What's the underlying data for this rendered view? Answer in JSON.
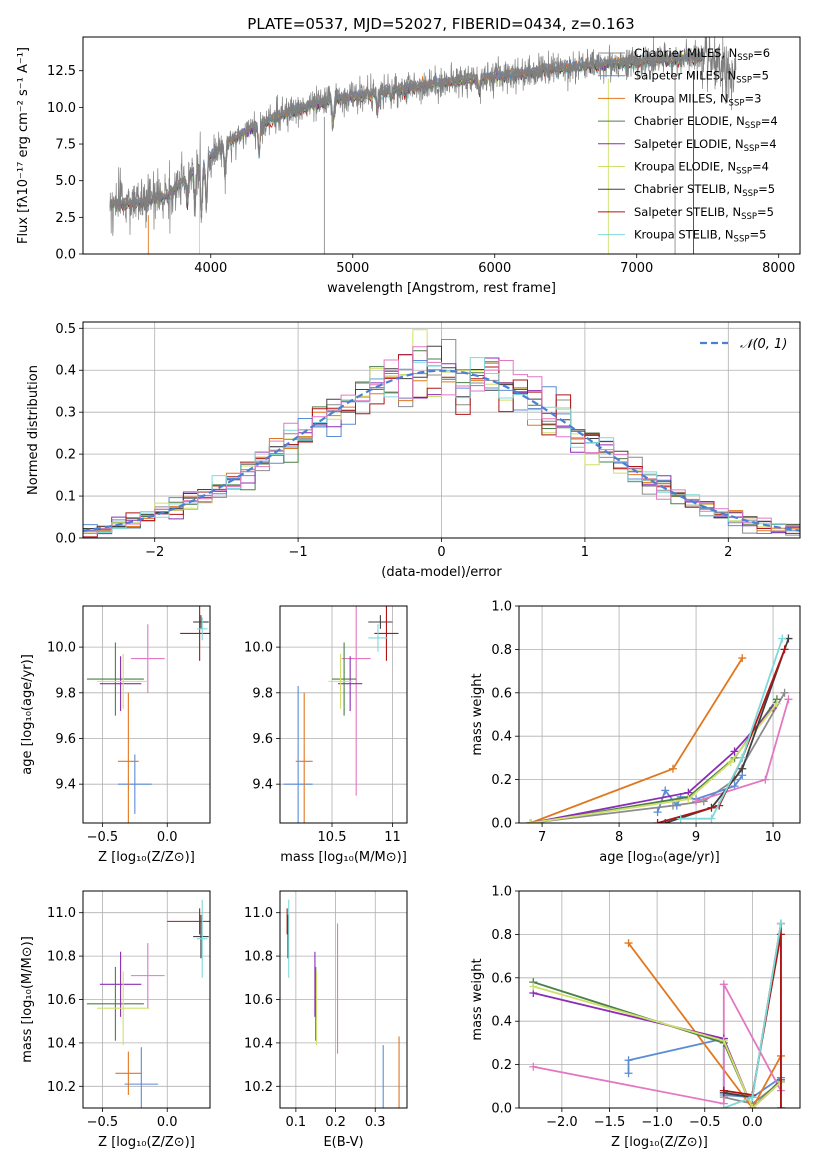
{
  "title": "PLATE=0537, MJD=52027, FIBERID=0434, z=0.163",
  "colors": {
    "Chabrier MILES": "#8c8c8c",
    "Salpeter MILES": "#5b8cd6",
    "Kroupa MILES": "#e07820",
    "Chabrier ELODIE": "#4a7f4a",
    "Salpeter ELODIE": "#8b2db5",
    "Kroupa ELODIE": "#cfe06a",
    "Chabrier STELIB": "#404040",
    "Salpeter STELIB": "#b01515",
    "Kroupa STELIB": "#7fd9d9",
    "extra": "#e377c2",
    "normal_curve": "#4a7fd4",
    "grid": "#b0b0b0"
  },
  "chart_data": [
    {
      "id": "spectrum",
      "type": "line",
      "xlabel": "wavelength [Angstrom, rest frame]",
      "ylabel": "Flux [fλ10⁻¹⁷ erg cm⁻² s⁻¹ A⁻¹]",
      "xlim": [
        3100,
        8150
      ],
      "ylim": [
        0,
        14.8
      ],
      "xticks": [
        4000,
        5000,
        6000,
        7000,
        8000
      ],
      "yticks": [
        0.0,
        2.5,
        5.0,
        7.5,
        10.0,
        12.5
      ],
      "grid": false,
      "legend_position": "top-right",
      "continuum": {
        "x": [
          3300,
          3500,
          3700,
          3900,
          4100,
          4300,
          4500,
          4700,
          4900,
          5200,
          5500,
          5800,
          6100,
          6400,
          6700,
          7000,
          7300,
          7500
        ],
        "y": [
          3.4,
          3.5,
          4.0,
          5.8,
          7.5,
          8.6,
          9.5,
          10.1,
          10.6,
          11.0,
          11.5,
          11.9,
          12.2,
          12.6,
          12.9,
          13.1,
          13.3,
          13.5
        ]
      },
      "legend": [
        {
          "label": "Chabrier MILES, N",
          "sub": "SSP",
          "n": "=6"
        },
        {
          "label": "Salpeter MILES, N",
          "sub": "SSP",
          "n": "=5"
        },
        {
          "label": "Kroupa MILES, N",
          "sub": "SSP",
          "n": "=3"
        },
        {
          "label": "Chabrier ELODIE, N",
          "sub": "SSP",
          "n": "=4"
        },
        {
          "label": "Salpeter ELODIE, N",
          "sub": "SSP",
          "n": "=4"
        },
        {
          "label": "Kroupa ELODIE, N",
          "sub": "SSP",
          "n": "=4"
        },
        {
          "label": "Chabrier STELIB, N",
          "sub": "SSP",
          "n": "=5"
        },
        {
          "label": "Salpeter STELIB, N",
          "sub": "SSP",
          "n": "=5"
        },
        {
          "label": "Kroupa STELIB, N",
          "sub": "SSP",
          "n": "=5"
        }
      ]
    },
    {
      "id": "residuals",
      "type": "line",
      "xlabel": "(data-model)/error",
      "ylabel": "Normed distribution",
      "xlim": [
        -2.5,
        2.5
      ],
      "ylim": [
        0,
        0.515
      ],
      "xticks": [
        -2,
        -1,
        0,
        1,
        2
      ],
      "xticklabels": [
        "−2",
        "−1",
        "0",
        "1",
        "2"
      ],
      "yticks": [
        0.0,
        0.1,
        0.2,
        0.3,
        0.4,
        0.5
      ],
      "grid": true,
      "legend": "𝒩(0, 1)",
      "legend_position": "top-right",
      "bin_width": 0.1,
      "curve": "normal(0,1)"
    },
    {
      "id": "age_vs_Z",
      "type": "scatter",
      "xlabel": "Z [log₁₀(Z/Z⊙)]",
      "ylabel": "age  [log₁₀(age/yr)]",
      "xlim": [
        -0.65,
        0.33
      ],
      "ylim": [
        9.23,
        10.18
      ],
      "xticks": [
        -0.5,
        0.0
      ],
      "xticklabels": [
        "−0.5",
        "0.0"
      ],
      "yticks": [
        9.4,
        9.6,
        9.8,
        10.0
      ],
      "grid": true,
      "points": [
        {
          "series": "Salpeter MILES",
          "x": -0.25,
          "xerr": 0.13,
          "y": 9.4,
          "yerr": 0.13
        },
        {
          "series": "Kroupa MILES",
          "x": -0.3,
          "xerr": 0.08,
          "y": 9.5,
          "yerr": 0.3
        },
        {
          "series": "extra",
          "x": -0.15,
          "xerr": 0.13,
          "y": 9.95,
          "yerr": 0.15
        },
        {
          "series": "Chabrier ELODIE",
          "x": -0.4,
          "xerr": 0.22,
          "y": 9.86,
          "yerr": 0.16
        },
        {
          "series": "Salpeter ELODIE",
          "x": -0.36,
          "xerr": 0.16,
          "y": 9.84,
          "yerr": 0.12
        },
        {
          "series": "Kroupa ELODIE",
          "x": -0.34,
          "xerr": 0.2,
          "y": 9.85,
          "yerr": 0.12
        },
        {
          "series": "Chabrier STELIB",
          "x": 0.26,
          "xerr": 0.06,
          "y": 10.11,
          "yerr": 0.03
        },
        {
          "series": "Salpeter STELIB",
          "x": 0.25,
          "xerr": 0.15,
          "y": 10.06,
          "yerr": 0.12
        },
        {
          "series": "Kroupa STELIB",
          "x": 0.27,
          "xerr": 0.04,
          "y": 10.08,
          "yerr": 0.05
        }
      ]
    },
    {
      "id": "age_vs_mass",
      "type": "scatter",
      "xlabel": "mass [log₁₀(M/M⊙)]",
      "ylabel": "",
      "xlim": [
        10.07,
        11.12
      ],
      "ylim": [
        9.23,
        10.18
      ],
      "xticks": [
        10.5,
        11.0
      ],
      "yticks": [
        9.4,
        9.6,
        9.8,
        10.0
      ],
      "grid": true,
      "points": [
        {
          "series": "Salpeter MILES",
          "x": 10.22,
          "xerr": 0.12,
          "y": 9.4,
          "yerr": 0.43
        },
        {
          "series": "Kroupa MILES",
          "x": 10.27,
          "xerr": 0.07,
          "y": 9.5,
          "yerr": 0.3
        },
        {
          "series": "extra",
          "x": 10.7,
          "xerr": 0.12,
          "y": 9.95,
          "yerr": 0.6
        },
        {
          "series": "Chabrier ELODIE",
          "x": 10.6,
          "xerr": 0.1,
          "y": 9.86,
          "yerr": 0.16
        },
        {
          "series": "Salpeter ELODIE",
          "x": 10.65,
          "xerr": 0.1,
          "y": 9.84,
          "yerr": 0.12
        },
        {
          "series": "Kroupa ELODIE",
          "x": 10.57,
          "xerr": 0.1,
          "y": 9.85,
          "yerr": 0.12
        },
        {
          "series": "Chabrier STELIB",
          "x": 10.9,
          "xerr": 0.1,
          "y": 10.11,
          "yerr": 0.03
        },
        {
          "series": "Salpeter STELIB",
          "x": 10.95,
          "xerr": 0.1,
          "y": 10.06,
          "yerr": 0.12
        },
        {
          "series": "Kroupa STELIB",
          "x": 10.88,
          "xerr": 0.08,
          "y": 10.04,
          "yerr": 0.06
        }
      ]
    },
    {
      "id": "weight_vs_age",
      "type": "line",
      "xlabel": "age  [log₁₀(age/yr)]",
      "ylabel": "mass weight",
      "xlim": [
        6.7,
        10.35
      ],
      "ylim": [
        0,
        1.0
      ],
      "xticks": [
        7,
        8,
        9,
        10
      ],
      "yticks": [
        0.0,
        0.2,
        0.4,
        0.6,
        0.8,
        1.0
      ],
      "grid": true,
      "series": [
        {
          "name": "Chabrier MILES",
          "x": [
            6.85,
            8.7,
            9.1,
            9.5,
            10.15
          ],
          "y": [
            0.0,
            0.08,
            0.1,
            0.2,
            0.6
          ]
        },
        {
          "name": "Salpeter MILES",
          "x": [
            8.5,
            8.6,
            8.75,
            8.8,
            9.0,
            9.5,
            9.6
          ],
          "y": [
            0.05,
            0.15,
            0.08,
            0.12,
            0.11,
            0.17,
            0.22
          ]
        },
        {
          "name": "Kroupa MILES",
          "x": [
            6.85,
            8.7,
            9.6
          ],
          "y": [
            0.0,
            0.25,
            0.76
          ]
        },
        {
          "name": "extra",
          "x": [
            9.0,
            9.9,
            10.2
          ],
          "y": [
            0.1,
            0.2,
            0.57
          ]
        },
        {
          "name": "Chabrier ELODIE",
          "x": [
            6.85,
            8.9,
            9.5,
            10.05
          ],
          "y": [
            0.0,
            0.12,
            0.3,
            0.57
          ]
        },
        {
          "name": "Salpeter ELODIE",
          "x": [
            6.85,
            8.9,
            9.5,
            10.0
          ],
          "y": [
            0.0,
            0.14,
            0.33,
            0.53
          ]
        },
        {
          "name": "Kroupa ELODIE",
          "x": [
            6.85,
            8.9,
            9.45,
            10.05
          ],
          "y": [
            0.0,
            0.11,
            0.28,
            0.55
          ]
        },
        {
          "name": "Chabrier STELIB",
          "x": [
            8.6,
            9.2,
            9.6,
            10.2
          ],
          "y": [
            0.0,
            0.07,
            0.25,
            0.85
          ]
        },
        {
          "name": "Salpeter STELIB",
          "x": [
            8.5,
            9.3,
            9.6,
            10.15
          ],
          "y": [
            0.0,
            0.08,
            0.3,
            0.8
          ]
        },
        {
          "name": "Kroupa STELIB",
          "x": [
            8.8,
            9.2,
            9.6,
            10.12
          ],
          "y": [
            0.02,
            0.02,
            0.3,
            0.85
          ]
        }
      ]
    },
    {
      "id": "mass_vs_Z",
      "type": "scatter",
      "xlabel": "Z [log₁₀(Z/Z⊙)]",
      "ylabel": "mass [log₁₀(M/M⊙)]",
      "xlim": [
        -0.65,
        0.33
      ],
      "ylim": [
        10.1,
        11.1
      ],
      "xticks": [
        -0.5,
        0.0
      ],
      "xticklabels": [
        "−0.5",
        "0.0"
      ],
      "yticks": [
        10.2,
        10.4,
        10.6,
        10.8,
        11.0
      ],
      "grid": true,
      "points": [
        {
          "series": "Salpeter MILES",
          "x": -0.2,
          "xerr": 0.13,
          "y": 10.21,
          "yerr": 0.17
        },
        {
          "series": "Kroupa MILES",
          "x": -0.3,
          "xerr": 0.1,
          "y": 10.26,
          "yerr": 0.1
        },
        {
          "series": "extra",
          "x": -0.15,
          "xerr": 0.13,
          "y": 10.71,
          "yerr": 0.15
        },
        {
          "series": "Chabrier ELODIE",
          "x": -0.4,
          "xerr": 0.22,
          "y": 10.58,
          "yerr": 0.17
        },
        {
          "series": "Salpeter ELODIE",
          "x": -0.36,
          "xerr": 0.16,
          "y": 10.67,
          "yerr": 0.15
        },
        {
          "series": "Kroupa ELODIE",
          "x": -0.34,
          "xerr": 0.2,
          "y": 10.56,
          "yerr": 0.17
        },
        {
          "series": "Chabrier STELIB",
          "x": 0.26,
          "xerr": 0.06,
          "y": 10.89,
          "yerr": 0.1
        },
        {
          "series": "Salpeter STELIB",
          "x": 0.25,
          "xerr": 0.25,
          "y": 10.96,
          "yerr": 0.06
        },
        {
          "series": "Kroupa STELIB",
          "x": 0.27,
          "xerr": 0.04,
          "y": 10.88,
          "yerr": 0.18
        }
      ]
    },
    {
      "id": "mass_vs_EBV",
      "type": "scatter",
      "xlabel": "E(B-V)",
      "ylabel": "",
      "xlim": [
        0.06,
        0.38
      ],
      "ylim": [
        10.1,
        11.1
      ],
      "xticks": [
        0.1,
        0.2,
        0.3
      ],
      "yticks": [
        10.2,
        10.4,
        10.6,
        10.8,
        11.0
      ],
      "grid": true,
      "points": [
        {
          "series": "Salpeter MILES",
          "x": 0.32,
          "xerr": 0,
          "y": 10.21,
          "yerr": 0.18
        },
        {
          "series": "Kroupa MILES",
          "x": 0.36,
          "xerr": 0,
          "y": 10.26,
          "yerr": 0.17
        },
        {
          "series": "extra",
          "x": 0.205,
          "xerr": 0,
          "y": 10.65,
          "yerr": 0.3
        },
        {
          "series": "Chabrier ELODIE",
          "x": 0.15,
          "xerr": 0,
          "y": 10.58,
          "yerr": 0.17
        },
        {
          "series": "Salpeter ELODIE",
          "x": 0.148,
          "xerr": 0,
          "y": 10.67,
          "yerr": 0.15
        },
        {
          "series": "Kroupa ELODIE",
          "x": 0.152,
          "xerr": 0,
          "y": 10.56,
          "yerr": 0.17
        },
        {
          "series": "Chabrier STELIB",
          "x": 0.08,
          "xerr": 0,
          "y": 10.89,
          "yerr": 0.1
        },
        {
          "series": "Salpeter STELIB",
          "x": 0.078,
          "xerr": 0,
          "y": 10.96,
          "yerr": 0.06
        },
        {
          "series": "Kroupa STELIB",
          "x": 0.082,
          "xerr": 0,
          "y": 10.88,
          "yerr": 0.18
        }
      ]
    },
    {
      "id": "weight_vs_Z",
      "type": "line",
      "xlabel": "Z [log₁₀(Z/Z⊙)]",
      "ylabel": "mass weight",
      "xlim": [
        -2.45,
        0.5
      ],
      "ylim": [
        0,
        1.0
      ],
      "xticks": [
        -2.0,
        -1.5,
        -1.0,
        -0.5,
        0.0
      ],
      "xticklabels": [
        "−2.0",
        "−1.5",
        "−1.0",
        "−0.5",
        "0.0"
      ],
      "yticks": [
        0.0,
        0.2,
        0.4,
        0.6,
        0.8,
        1.0
      ],
      "grid": true,
      "series": [
        {
          "name": "Chabrier MILES",
          "x": [
            -0.3,
            0.0,
            0.3
          ],
          "y": [
            0.05,
            0.02,
            0.12
          ]
        },
        {
          "name": "Salpeter MILES",
          "x": [
            -1.3,
            -1.3,
            -0.3,
            -0.3,
            0.0,
            0.3
          ],
          "y": [
            0.16,
            0.22,
            0.32,
            0.06,
            0.05,
            0.14
          ]
        },
        {
          "name": "Kroupa MILES",
          "x": [
            -1.3,
            0.0,
            0.3
          ],
          "y": [
            0.76,
            0.0,
            0.24
          ]
        },
        {
          "name": "extra",
          "x": [
            -2.3,
            -0.3,
            -0.3,
            0.3
          ],
          "y": [
            0.19,
            0.02,
            0.57,
            0.08
          ]
        },
        {
          "name": "Chabrier ELODIE",
          "x": [
            -2.3,
            -0.3,
            0.0,
            0.3
          ],
          "y": [
            0.58,
            0.3,
            0.0,
            0.13
          ]
        },
        {
          "name": "Salpeter ELODIE",
          "x": [
            -2.3,
            -0.3,
            0.0,
            0.3
          ],
          "y": [
            0.53,
            0.32,
            0.0,
            0.12
          ]
        },
        {
          "name": "Kroupa ELODIE",
          "x": [
            -2.3,
            -0.3,
            0.0,
            0.3
          ],
          "y": [
            0.56,
            0.31,
            0.0,
            0.12
          ]
        },
        {
          "name": "Chabrier STELIB",
          "x": [
            -0.3,
            0.0,
            0.3,
            0.3
          ],
          "y": [
            0.07,
            0.05,
            0.85,
            0.0
          ]
        },
        {
          "name": "Salpeter STELIB",
          "x": [
            -0.3,
            0.0,
            0.3,
            0.3
          ],
          "y": [
            0.08,
            0.06,
            0.8,
            0.0
          ]
        },
        {
          "name": "Kroupa STELIB",
          "x": [
            -0.3,
            0.0,
            0.3
          ],
          "y": [
            0.0,
            0.05,
            0.85
          ]
        }
      ]
    }
  ]
}
